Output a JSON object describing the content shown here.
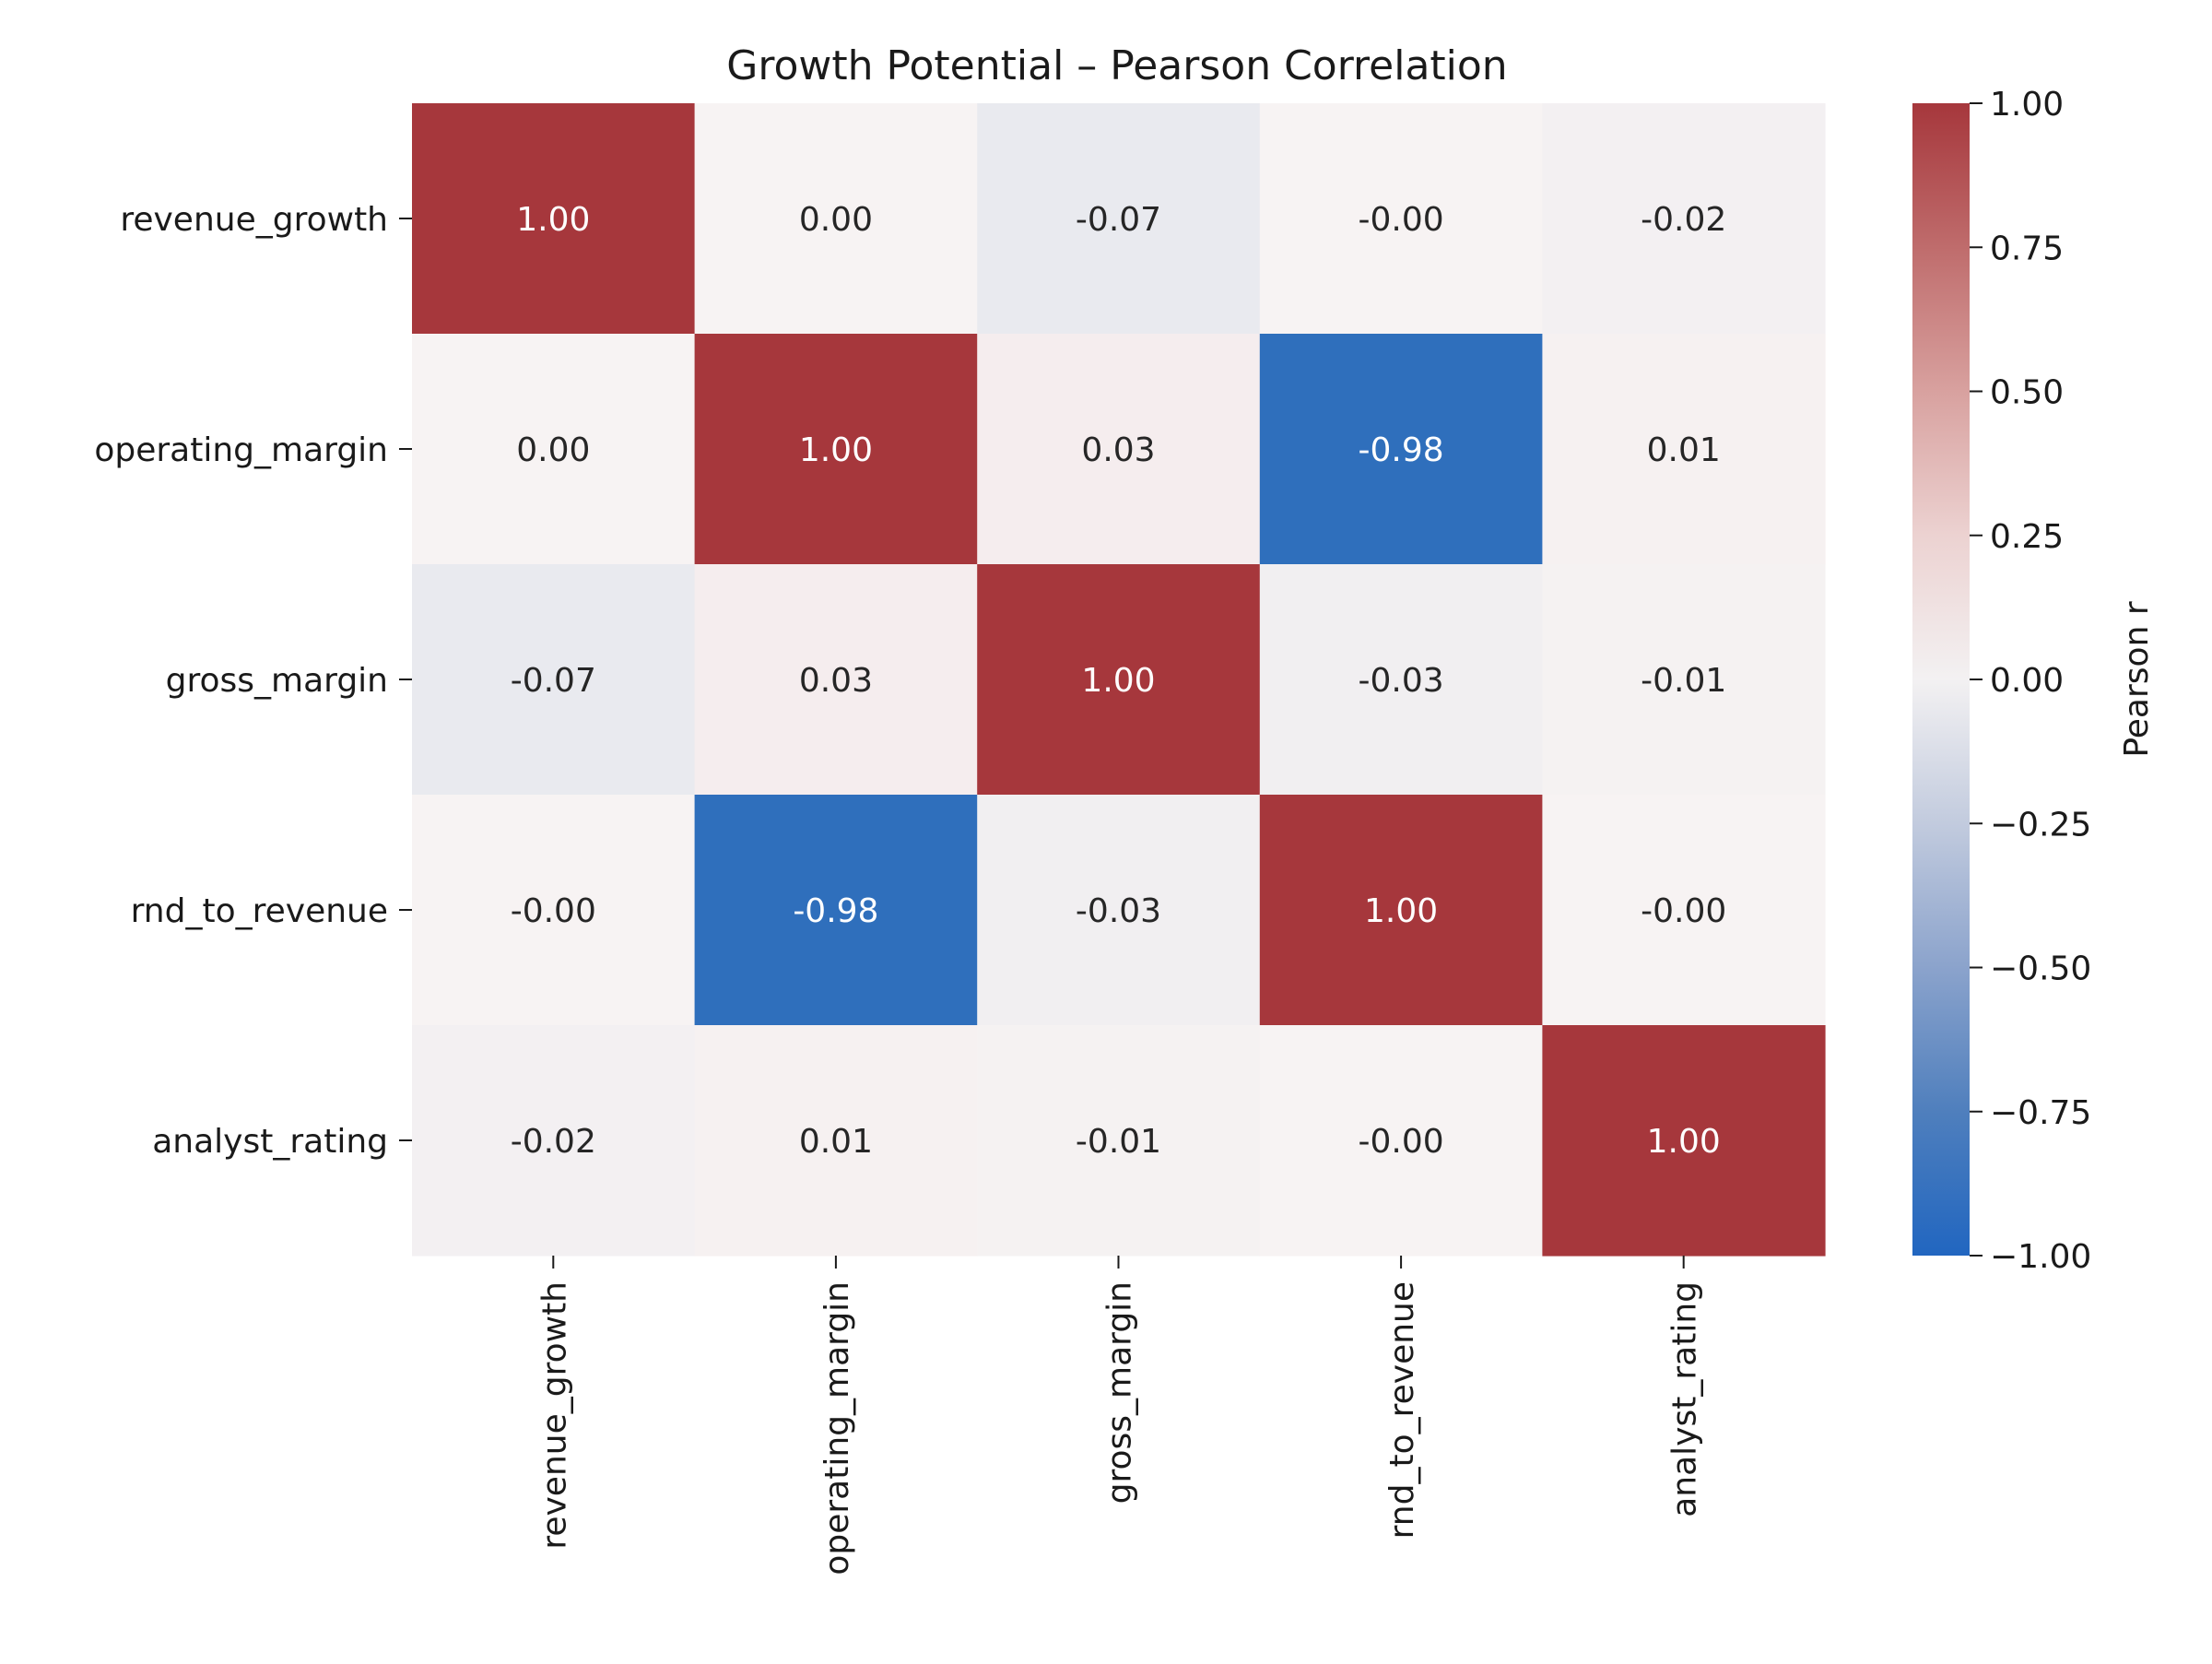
{
  "chart_data": {
    "type": "heatmap",
    "title": "Growth Potential – Pearson Correlation",
    "rows": [
      "revenue_growth",
      "operating_margin",
      "gross_margin",
      "rnd_to_revenue",
      "analyst_rating"
    ],
    "columns": [
      "revenue_growth",
      "operating_margin",
      "gross_margin",
      "rnd_to_revenue",
      "analyst_rating"
    ],
    "values": [
      [
        1.0,
        0.0,
        -0.07,
        -0.0,
        -0.02
      ],
      [
        0.0,
        1.0,
        0.03,
        -0.98,
        0.01
      ],
      [
        -0.07,
        0.03,
        1.0,
        -0.03,
        -0.01
      ],
      [
        -0.0,
        -0.98,
        -0.03,
        1.0,
        -0.0
      ],
      [
        -0.02,
        0.01,
        -0.01,
        -0.0,
        1.0
      ]
    ],
    "cell_labels": [
      [
        "1.00",
        "0.00",
        "-0.07",
        "-0.00",
        "-0.02"
      ],
      [
        "0.00",
        "1.00",
        "0.03",
        "-0.98",
        "0.01"
      ],
      [
        "-0.07",
        "0.03",
        "1.00",
        "-0.03",
        "-0.01"
      ],
      [
        "-0.00",
        "-0.98",
        "-0.03",
        "1.00",
        "-0.00"
      ],
      [
        "-0.02",
        "0.01",
        "-0.01",
        "-0.00",
        "1.00"
      ]
    ],
    "colorbar": {
      "label": "Pearson r",
      "range": [
        -1.0,
        1.0
      ],
      "ticks": [
        1.0,
        0.75,
        0.5,
        0.25,
        0.0,
        -0.25,
        -0.5,
        -0.75,
        -1.0
      ],
      "tick_labels": [
        "1.00",
        "0.75",
        "0.50",
        "0.25",
        "0.00",
        "−0.25",
        "−0.50",
        "−0.75",
        "−1.00"
      ],
      "colormap": "vlag",
      "colors": {
        "negative": "#2b6cbb",
        "neutral": "#f7f3f3",
        "positive": "#a6373c"
      }
    }
  }
}
